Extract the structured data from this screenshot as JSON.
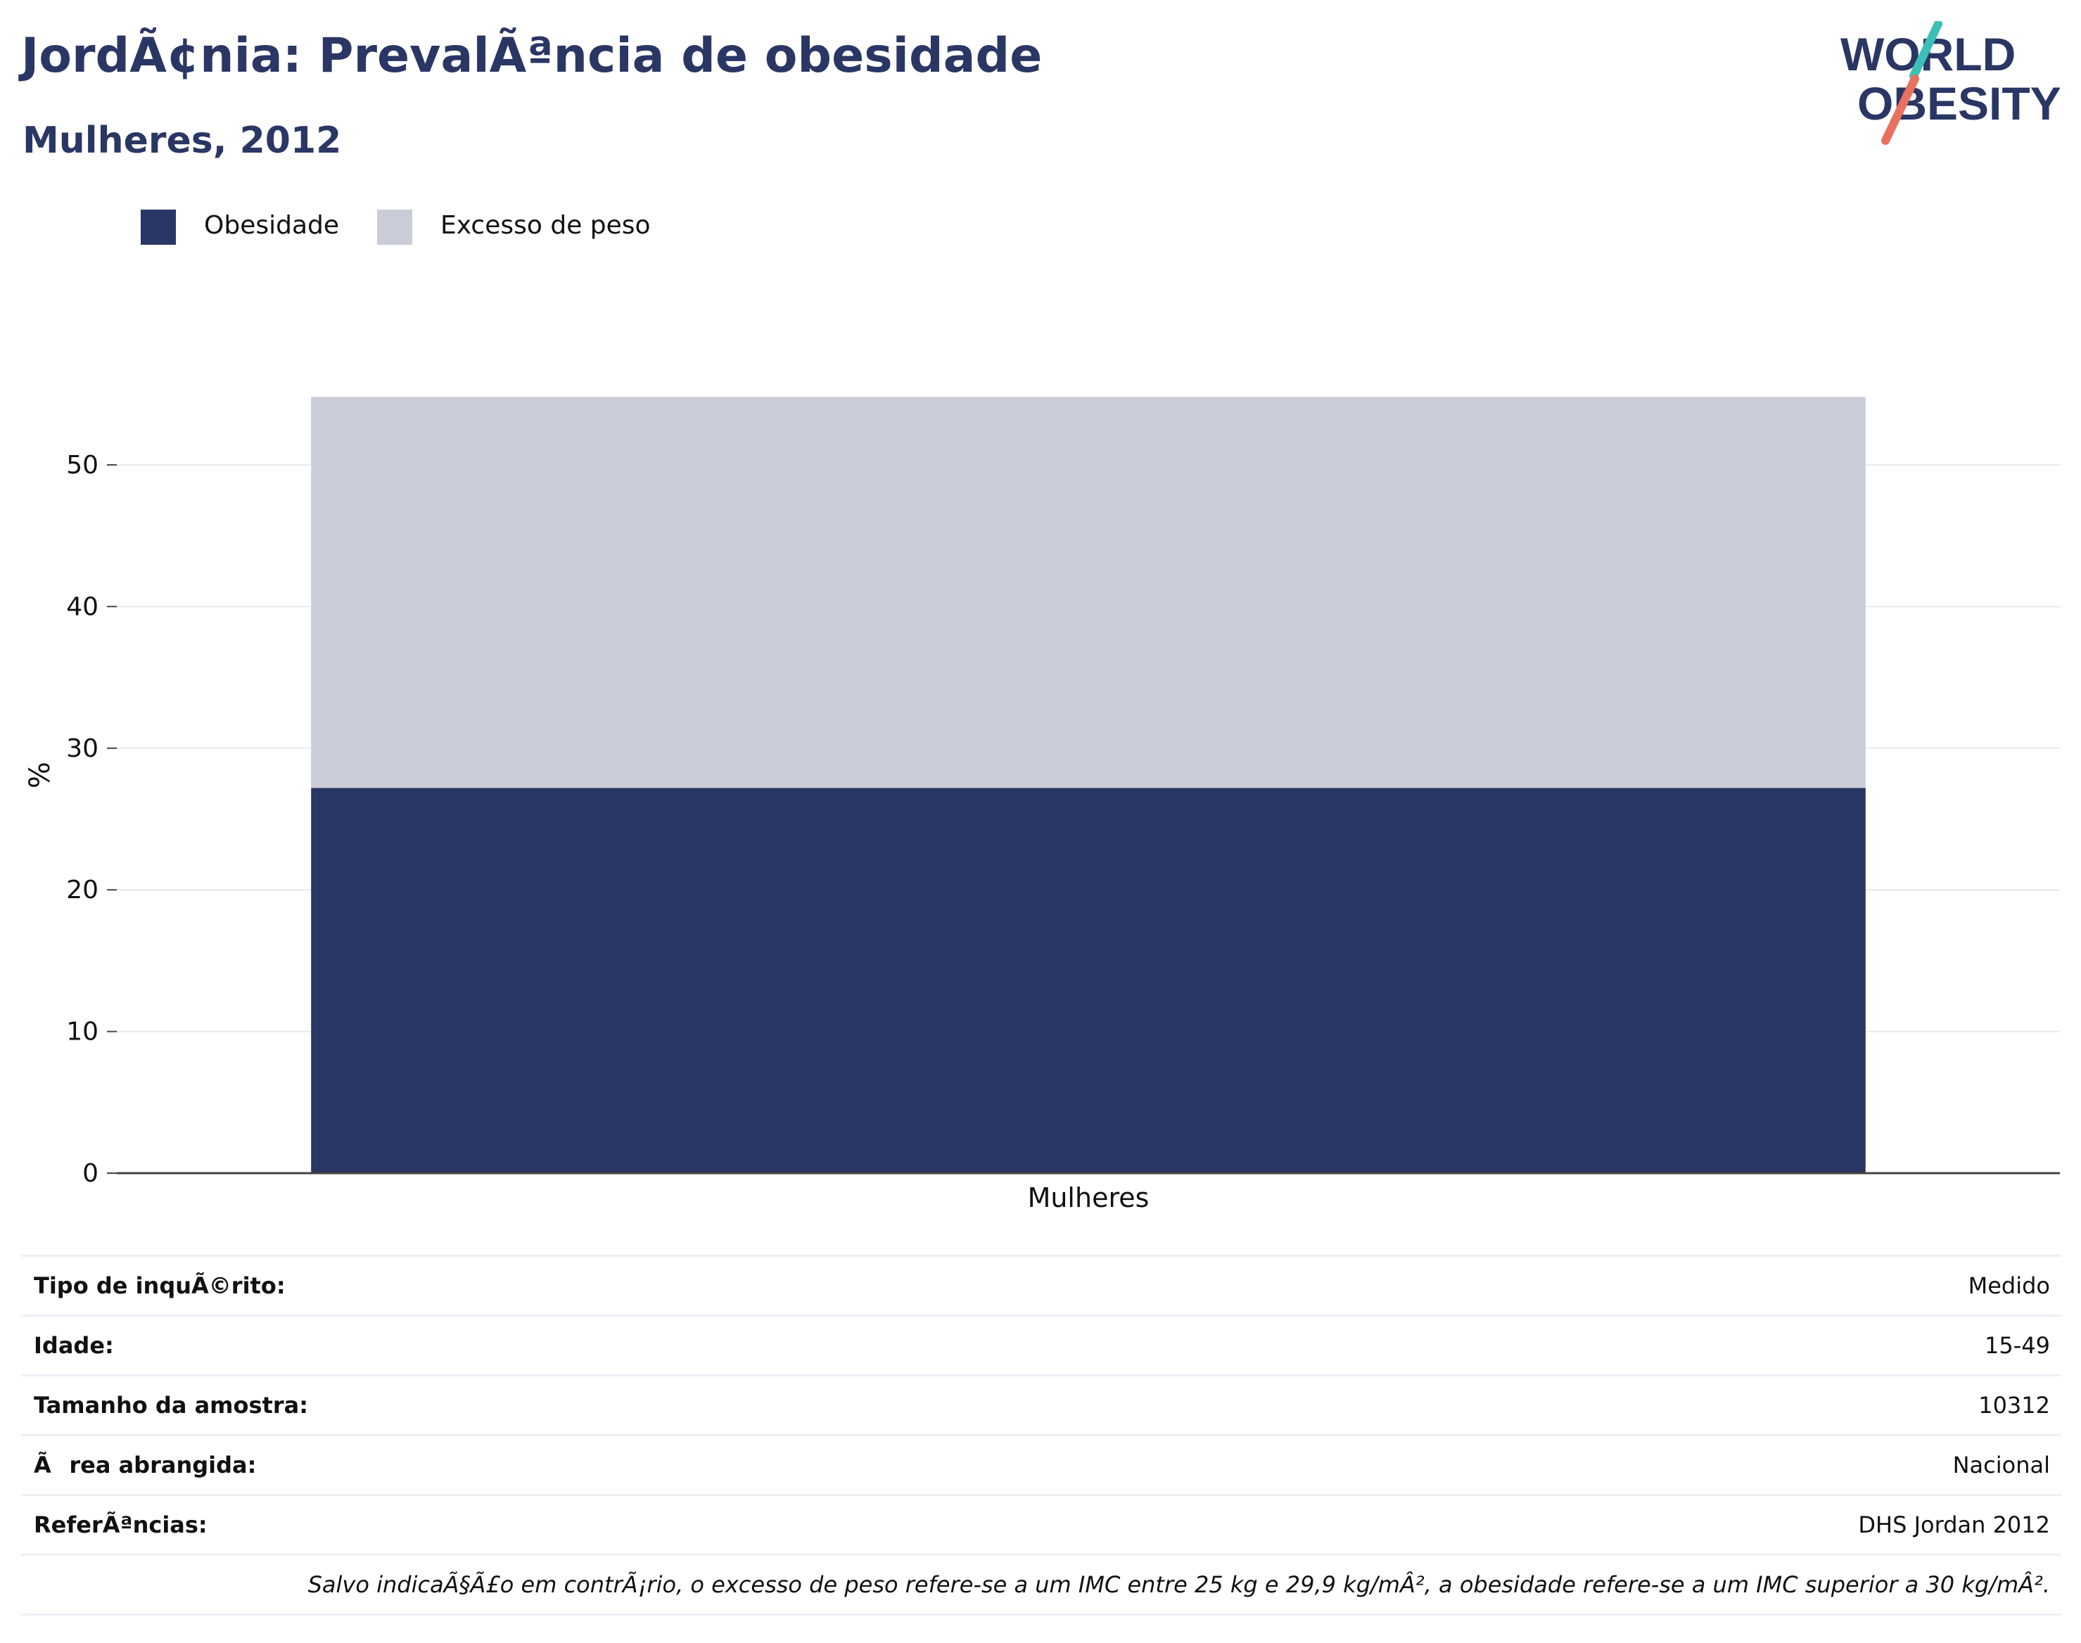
{
  "header": {
    "title": "JordÃ¢nia: PrevalÃªncia de obesidade",
    "subtitle": "Mulheres, 2012"
  },
  "logo": {
    "line1": "WORLD",
    "line2": "OBESITY",
    "colors": {
      "text": "#2a3764",
      "slash_top": "#3dbfb7",
      "slash_bottom": "#e8705e"
    }
  },
  "legend": [
    {
      "label": "Obesidade",
      "color": "#2a3764"
    },
    {
      "label": "Excesso de peso",
      "color": "#cacdd8"
    }
  ],
  "chart_data": {
    "type": "bar",
    "stacked": true,
    "categories": [
      "Mulheres"
    ],
    "series": [
      {
        "name": "Obesidade",
        "values": [
          27.2
        ],
        "color": "#2a3764"
      },
      {
        "name": "Excesso de peso",
        "values": [
          27.6
        ],
        "color": "#cacdd8"
      }
    ],
    "ylabel": "%",
    "xlabel": "",
    "ylim": [
      0,
      57
    ],
    "yticks": [
      0,
      10,
      20,
      30,
      40,
      50
    ],
    "grid": true,
    "legend_position": "top-left"
  },
  "details": [
    {
      "key": "Tipo de inquÃ©rito:",
      "value": "Medido"
    },
    {
      "key": "Idade:",
      "value": "15-49"
    },
    {
      "key": "Tamanho da amostra:",
      "value": "10312"
    },
    {
      "key": "Ãrea abrangida:",
      "value": "Nacional"
    },
    {
      "key": "ReferÃªncias:",
      "value": "DHS Jordan 2012"
    }
  ],
  "footnote": "Salvo indicaÃ§Ã£o em contrÃ¡rio, o excesso de peso refere-se a um IMC entre 25 kg e 29,9 kg/mÂ², a obesidade refere-se a um IMC superior a 30 kg/mÂ²."
}
